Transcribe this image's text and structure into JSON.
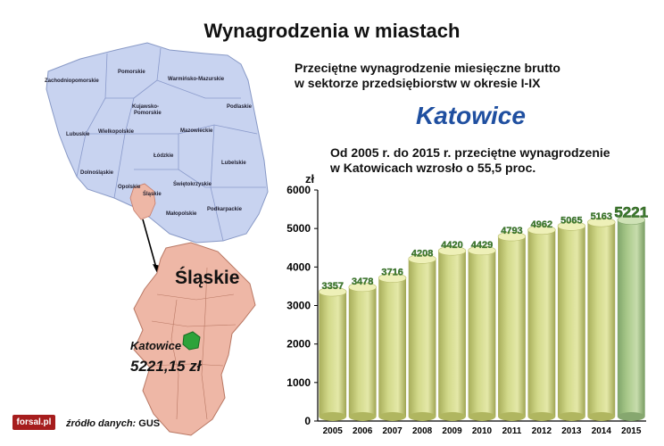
{
  "title": "Wynagrodzenia w miastach",
  "subtitle_line1": "Przeciętne wynagrodzenie miesięczne brutto",
  "subtitle_line2": "w sektorze przedsiębiorstw w okresie I-IX",
  "city": "Katowice",
  "growth_line1": "Od 2005 r. do 2015 r. przeciętne wynagrodzenie",
  "growth_line2": "w Katowicach wzrosło o 55,5 proc.",
  "unit": "zł",
  "source_prefix": "źródło danych:",
  "source_name": "GUS",
  "logo_text": "forsal.pl",
  "map": {
    "voivodeships": [
      "Zachodniopomorskie",
      "Pomorskie",
      "Warmińsko-Mazurskie",
      "Kujawsko-",
      "Pomorskie",
      "Podlaskie",
      "Lubuskie",
      "Wielkopolskie",
      "Mazowieckie",
      "Łódzkie",
      "Lubelskie",
      "Dolnośląskie",
      "Opolskie",
      "Śląskie",
      "Świętokrzyskie",
      "Podkarpackie",
      "Małopolskie"
    ],
    "region_label": "Śląskie",
    "city_label": "Katowice",
    "city_value": "5221,15 zł"
  },
  "colors": {
    "bar": "#d2d98a",
    "bar_highlight": "#a9c98a",
    "value_label": "#3f7d2e",
    "map_poland": "#c8d3f0",
    "map_region": "#eeb7a6",
    "map_city": "#2da33a"
  },
  "chart_data": {
    "type": "bar",
    "categories": [
      "2005",
      "2006",
      "2007",
      "2008",
      "2009",
      "2010",
      "2011",
      "2012",
      "2013",
      "2014",
      "2015"
    ],
    "values": [
      3357,
      3478,
      3716,
      4208,
      4420,
      4429,
      4793,
      4962,
      5065,
      5163,
      5221
    ],
    "ylabel": "zł",
    "ylim": [
      0,
      6000
    ],
    "yticks": [
      0,
      1000,
      2000,
      3000,
      4000,
      5000,
      6000
    ],
    "highlight_category": "2015",
    "grid": false,
    "legend": "none"
  }
}
